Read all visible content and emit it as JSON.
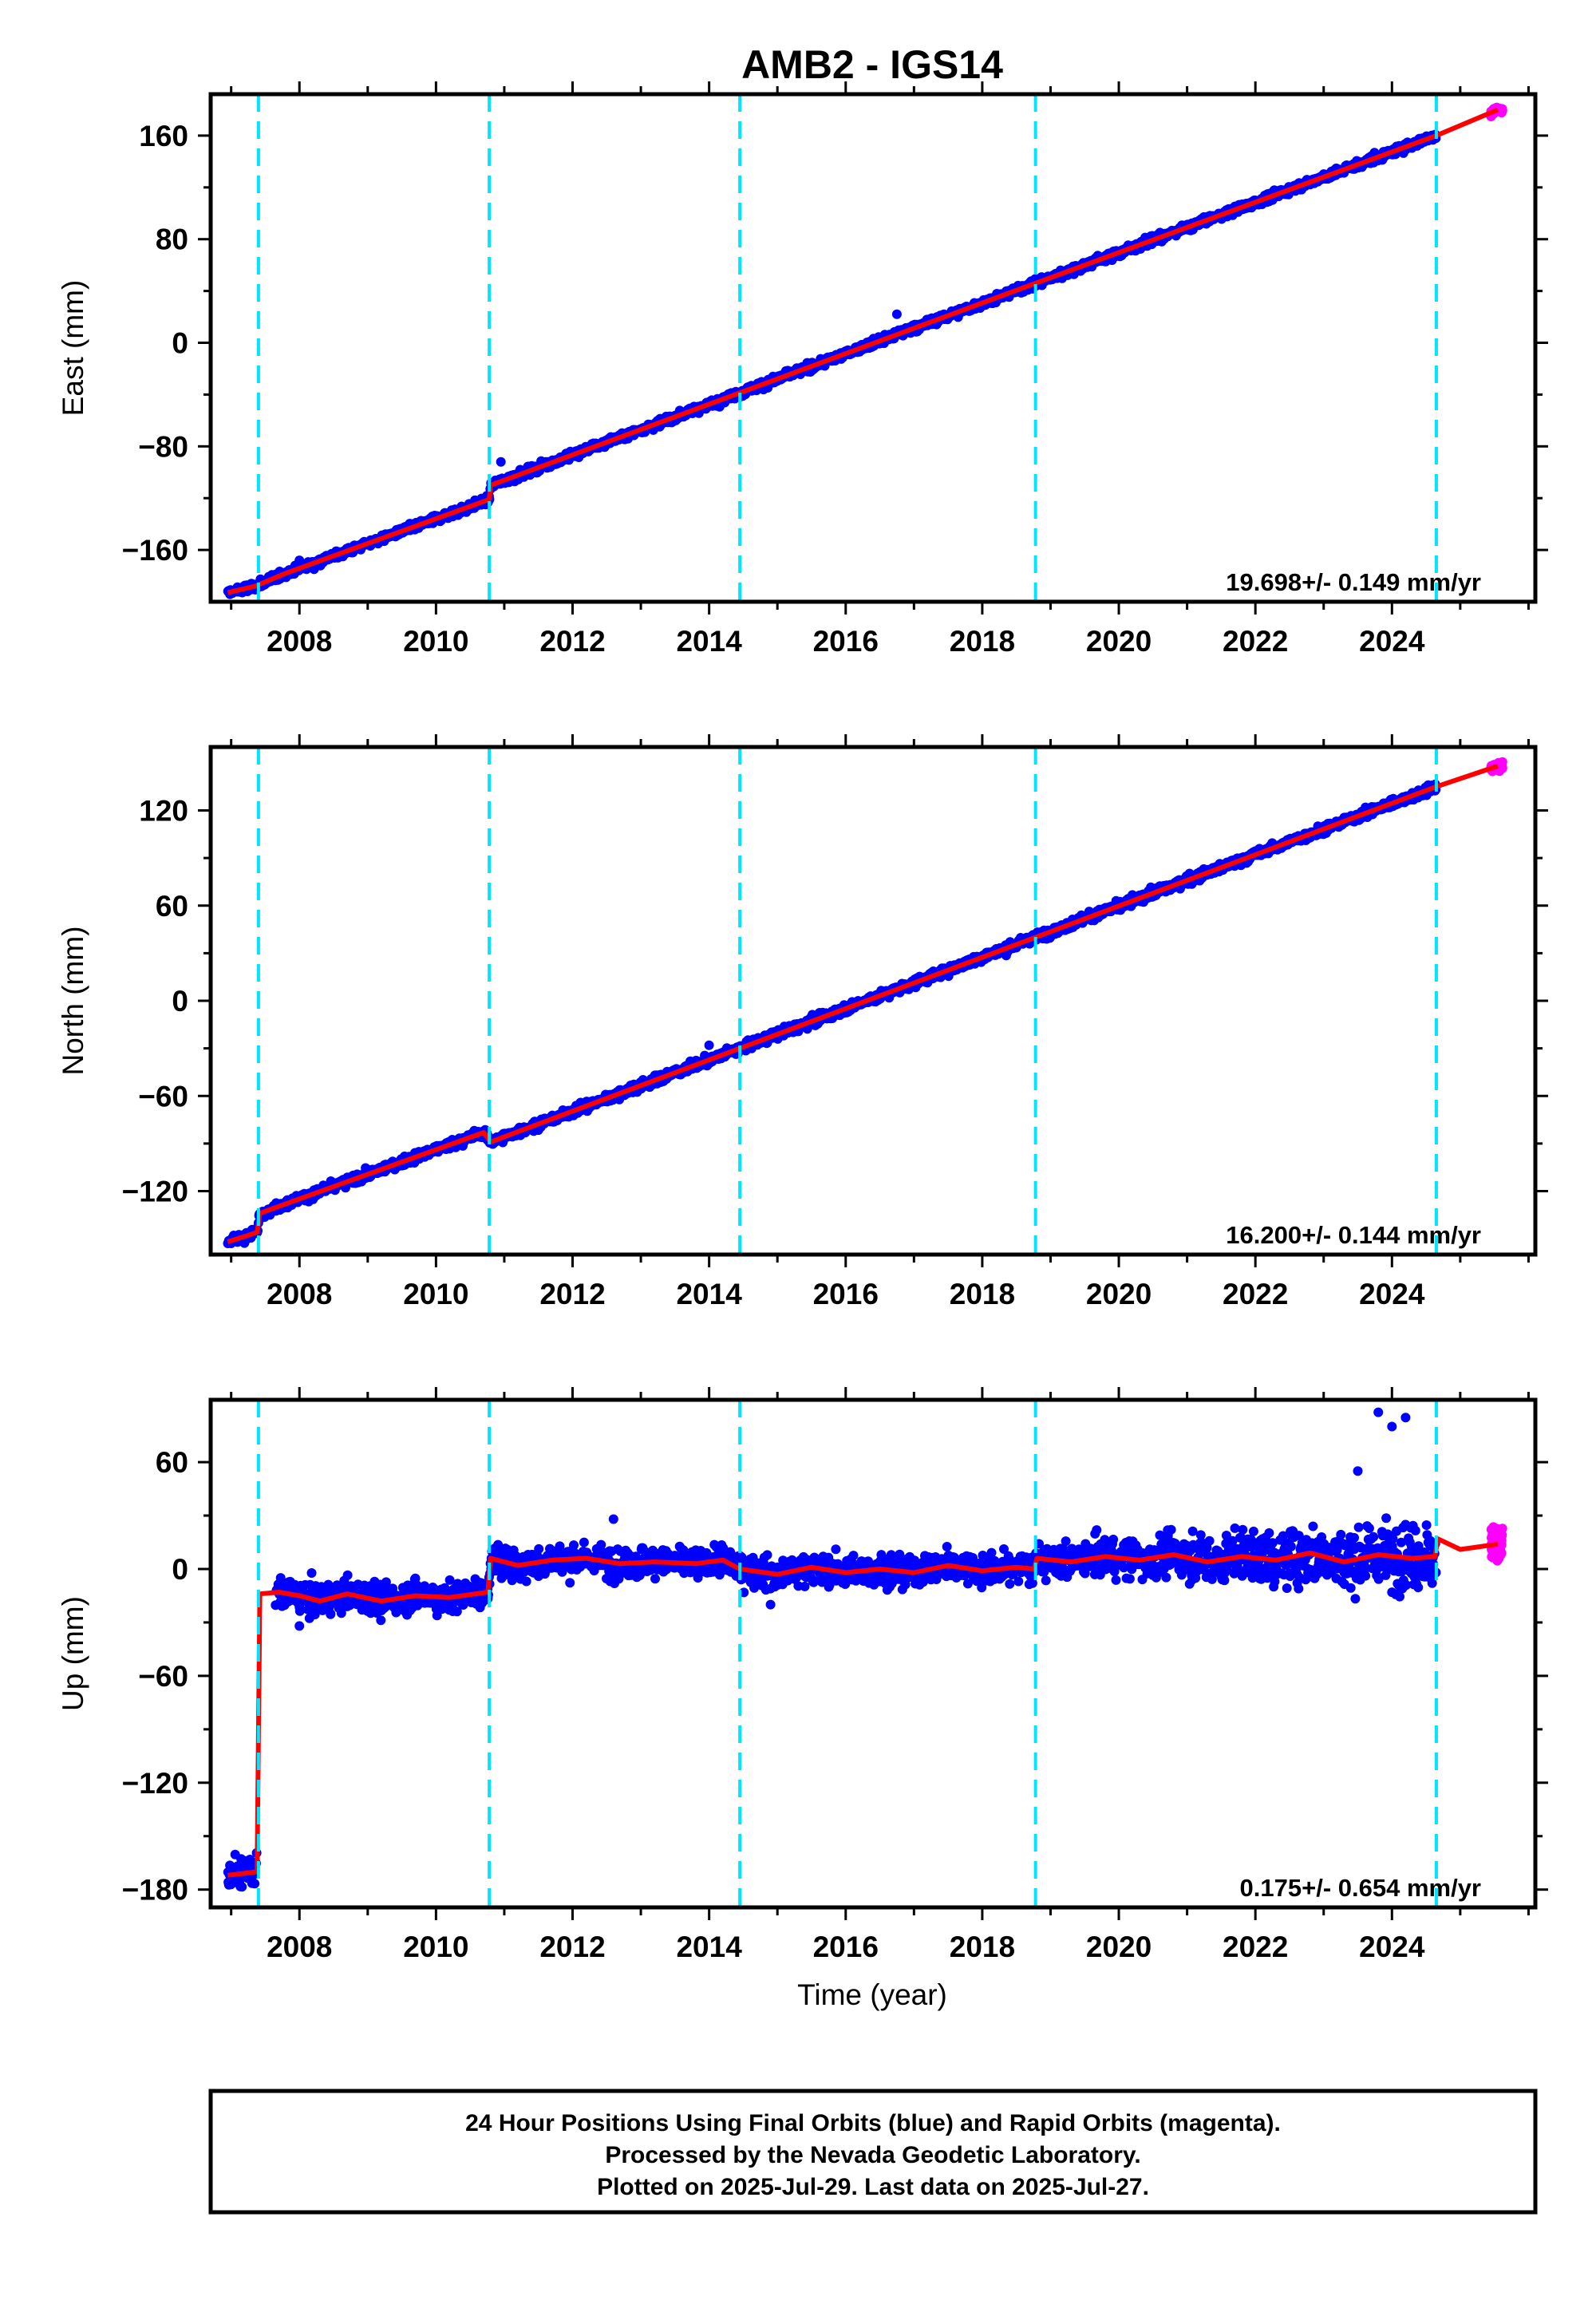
{
  "title": "AMB2 - IGS14",
  "xlabel": "Time (year)",
  "footer": {
    "line1": "24 Hour Positions Using Final Orbits (blue) and Rapid Orbits (magenta).",
    "line2": "Processed by the Nevada Geodetic Laboratory.",
    "line3": "Plotted on 2025-Jul-29. Last data on 2025-Jul-27."
  },
  "colors": {
    "final": "#0000ff",
    "rapid": "#ff00ff",
    "model": "#ff0000",
    "steps": "#00e5ff"
  },
  "chart_data": [
    {
      "type": "scatter",
      "panel": "east",
      "ylabel": "East (mm)",
      "xlim": [
        2006.7,
        2026.1
      ],
      "ylim": [
        -200,
        192
      ],
      "xticks": [
        2008,
        2010,
        2012,
        2014,
        2016,
        2018,
        2020,
        2022,
        2024
      ],
      "xtick_labels": [
        "2008",
        "2010",
        "2012",
        "2014",
        "2016",
        "2018",
        "2020",
        "2022",
        "2024"
      ],
      "yticks": [
        -160,
        -80,
        0,
        80,
        160
      ],
      "ytick_labels": [
        "−160",
        "−80",
        "0",
        "80",
        "160"
      ],
      "rate_text": "19.698+/- 0.149 mm/yr",
      "step_epochs": [
        2007.4,
        2010.78,
        2014.45,
        2018.78,
        2024.65
      ],
      "model": [
        [
          2006.95,
          -193
        ],
        [
          2007.35,
          -188
        ],
        [
          2007.8,
          -178
        ],
        [
          2010.78,
          -121
        ],
        [
          2010.8,
          -110
        ],
        [
          2018.78,
          46
        ],
        [
          2024.65,
          160
        ],
        [
          2025.55,
          180
        ]
      ],
      "final_spans": [
        [
          2006.95,
          2024.65
        ]
      ],
      "rapid_span": [
        2025.45,
        2025.62
      ],
      "scatter_mm": 2.2,
      "outliers": [
        [
          2016.75,
          22
        ],
        [
          2010.95,
          -92
        ],
        [
          2008.0,
          -168
        ]
      ]
    },
    {
      "type": "scatter",
      "panel": "north",
      "ylabel": "North (mm)",
      "xlim": [
        2006.7,
        2026.1
      ],
      "ylim": [
        -160,
        160
      ],
      "xticks": [
        2008,
        2010,
        2012,
        2014,
        2016,
        2018,
        2020,
        2022,
        2024
      ],
      "xtick_labels": [
        "2008",
        "2010",
        "2012",
        "2014",
        "2016",
        "2018",
        "2020",
        "2022",
        "2024"
      ],
      "yticks": [
        -120,
        -60,
        0,
        60,
        120
      ],
      "ytick_labels": [
        "−120",
        "−60",
        "0",
        "60",
        "120"
      ],
      "rate_text": "16.200+/- 0.144 mm/yr",
      "step_epochs": [
        2007.4,
        2010.78,
        2014.45,
        2018.78,
        2024.65
      ],
      "model": [
        [
          2006.95,
          -152
        ],
        [
          2007.38,
          -146
        ],
        [
          2007.42,
          -134
        ],
        [
          2007.8,
          -128
        ],
        [
          2010.7,
          -83
        ],
        [
          2010.8,
          -89
        ],
        [
          2018.78,
          40
        ],
        [
          2024.65,
          135
        ],
        [
          2025.55,
          148
        ]
      ],
      "final_spans": [
        [
          2006.95,
          2024.65
        ]
      ],
      "rapid_span": [
        2025.45,
        2025.62
      ],
      "scatter_mm": 2.0,
      "outliers": [
        [
          2014.0,
          -28
        ],
        [
          2008.0,
          -126
        ]
      ]
    },
    {
      "type": "scatter",
      "panel": "up",
      "ylabel": "Up (mm)",
      "xlim": [
        2006.7,
        2026.1
      ],
      "ylim": [
        -190,
        95
      ],
      "xticks": [
        2008,
        2010,
        2012,
        2014,
        2016,
        2018,
        2020,
        2022,
        2024
      ],
      "xtick_labels": [
        "2008",
        "2010",
        "2012",
        "2014",
        "2016",
        "2018",
        "2020",
        "2022",
        "2024"
      ],
      "yticks": [
        -180,
        -120,
        -60,
        0,
        60
      ],
      "ytick_labels": [
        "−180",
        "−120",
        "−60",
        "0",
        "60"
      ],
      "rate_text": "0.175+/- 0.654 mm/yr",
      "step_epochs": [
        2007.4,
        2010.78,
        2014.45,
        2018.78,
        2024.65
      ],
      "model": [
        [
          2006.95,
          -172
        ],
        [
          2007.38,
          -170
        ],
        [
          2007.42,
          -14
        ],
        [
          2007.7,
          -13
        ],
        [
          2008.0,
          -15
        ],
        [
          2008.3,
          -18
        ],
        [
          2008.7,
          -14
        ],
        [
          2009.2,
          -18
        ],
        [
          2009.7,
          -15
        ],
        [
          2010.2,
          -16
        ],
        [
          2010.76,
          -13
        ],
        [
          2010.8,
          6
        ],
        [
          2011.2,
          2
        ],
        [
          2011.7,
          5
        ],
        [
          2012.2,
          6
        ],
        [
          2012.7,
          3
        ],
        [
          2013.2,
          4
        ],
        [
          2013.8,
          3
        ],
        [
          2014.2,
          5
        ],
        [
          2014.45,
          0
        ],
        [
          2015.0,
          -3
        ],
        [
          2015.5,
          1
        ],
        [
          2016.0,
          -2
        ],
        [
          2016.5,
          0
        ],
        [
          2017.0,
          -2
        ],
        [
          2017.5,
          2
        ],
        [
          2018.0,
          -1
        ],
        [
          2018.5,
          1
        ],
        [
          2018.76,
          0
        ],
        [
          2018.8,
          6
        ],
        [
          2019.3,
          4
        ],
        [
          2019.8,
          7
        ],
        [
          2020.3,
          5
        ],
        [
          2020.8,
          8
        ],
        [
          2021.3,
          4
        ],
        [
          2021.8,
          7
        ],
        [
          2022.3,
          5
        ],
        [
          2022.8,
          9
        ],
        [
          2023.3,
          4
        ],
        [
          2023.8,
          8
        ],
        [
          2024.3,
          6
        ],
        [
          2024.63,
          7
        ],
        [
          2024.67,
          17
        ],
        [
          2025.0,
          11
        ],
        [
          2025.55,
          14
        ]
      ],
      "final_spans": [
        [
          2006.95,
          2007.38
        ],
        [
          2007.65,
          2024.65
        ]
      ],
      "rapid_span": [
        2025.45,
        2025.62
      ],
      "scatter_mm": 6.0,
      "outliers": [
        [
          2023.8,
          88
        ],
        [
          2024.0,
          80
        ],
        [
          2024.2,
          85
        ],
        [
          2023.5,
          55
        ],
        [
          2008.0,
          -32
        ],
        [
          2012.6,
          28
        ],
        [
          2014.9,
          -20
        ]
      ]
    }
  ]
}
